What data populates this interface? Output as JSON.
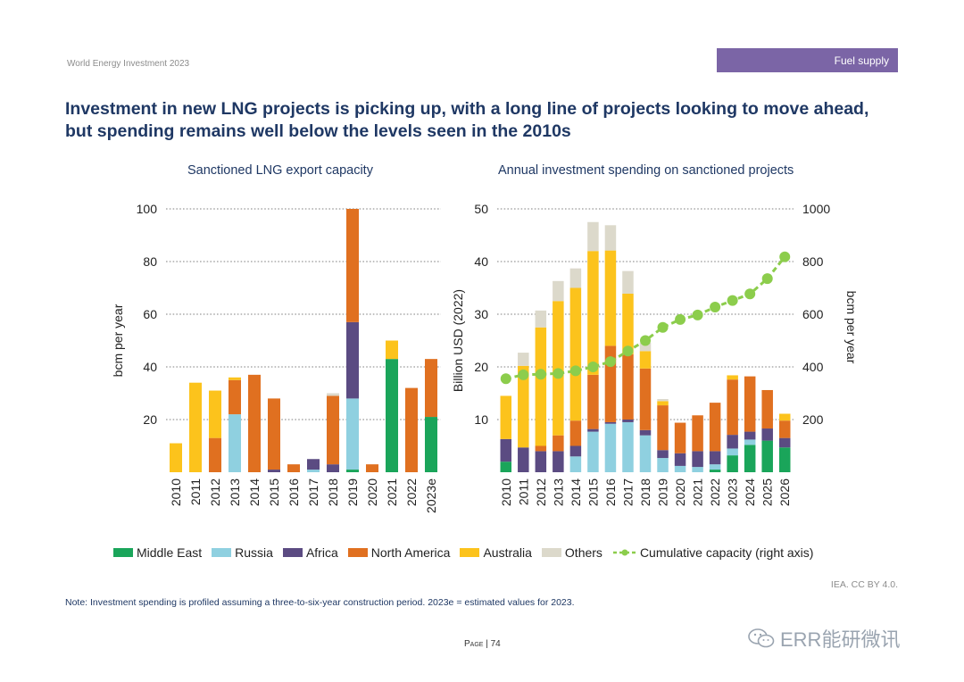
{
  "header": {
    "report": "World Energy Investment 2023",
    "section": "Fuel supply"
  },
  "headline": "Investment in new LNG projects is picking up, with a long line of projects looking to move ahead, but spending remains well below the levels seen in the 2010s",
  "colors": {
    "Middle East": "#1aa55a",
    "Russia": "#8fd0e0",
    "Africa": "#5b4b82",
    "North America": "#e07020",
    "Australia": "#fcc31c",
    "Others": "#dcd9cb",
    "Cumulative": "#8ccd4c"
  },
  "legend": {
    "items": [
      {
        "name": "Middle East",
        "color": "#1aa55a"
      },
      {
        "name": "Russia",
        "color": "#8fd0e0"
      },
      {
        "name": "Africa",
        "color": "#5b4b82"
      },
      {
        "name": "North America",
        "color": "#e07020"
      },
      {
        "name": "Australia",
        "color": "#fcc31c"
      },
      {
        "name": "Others",
        "color": "#dcd9cb"
      }
    ],
    "line_label": "Cumulative capacity (right axis)"
  },
  "chart_data": [
    {
      "type": "bar",
      "stacked": true,
      "title": "Sanctioned LNG export capacity",
      "ylabel": "bcm per year",
      "ylim": [
        0,
        100
      ],
      "yticks": [
        20,
        40,
        60,
        80,
        100
      ],
      "categories": [
        "2010",
        "2011",
        "2012",
        "2013",
        "2014",
        "2015",
        "2016",
        "2017",
        "2018",
        "2019",
        "2020",
        "2021",
        "2022",
        "2023e"
      ],
      "series": [
        {
          "name": "Middle East",
          "values": [
            0,
            0,
            0,
            0,
            0,
            0,
            0,
            0,
            0,
            1,
            0,
            43,
            0,
            21
          ]
        },
        {
          "name": "Russia",
          "values": [
            0,
            0,
            0,
            22,
            0,
            0,
            0,
            1,
            0,
            27,
            0,
            0,
            0,
            0
          ]
        },
        {
          "name": "Africa",
          "values": [
            0,
            0,
            0,
            0,
            0,
            1,
            0,
            4,
            3,
            29,
            0,
            0,
            0,
            0
          ]
        },
        {
          "name": "North America",
          "values": [
            0,
            0,
            13,
            13,
            37,
            27,
            3,
            0,
            26,
            43,
            3,
            0,
            32,
            22
          ]
        },
        {
          "name": "Australia",
          "values": [
            11,
            34,
            18,
            1,
            0,
            0,
            0,
            0,
            0,
            0,
            0,
            7,
            0,
            0
          ]
        },
        {
          "name": "Others",
          "values": [
            0,
            0,
            0,
            0,
            0,
            0,
            0,
            0,
            1,
            0,
            0,
            0,
            0,
            0
          ]
        }
      ]
    },
    {
      "type": "bar",
      "stacked": true,
      "title": "Annual investment spending on sanctioned projects",
      "ylabel": "Billion USD (2022)",
      "y2label": "bcm per year",
      "ylim": [
        0,
        50
      ],
      "y2lim": [
        0,
        1000
      ],
      "yticks": [
        10,
        20,
        30,
        40,
        50
      ],
      "y2ticks": [
        200,
        400,
        600,
        800,
        1000
      ],
      "categories": [
        "2010",
        "2011",
        "2012",
        "2013",
        "2014",
        "2015",
        "2016",
        "2017",
        "2018",
        "2019",
        "2020",
        "2021",
        "2022",
        "2023",
        "2024",
        "2025",
        "2026"
      ],
      "series": [
        {
          "name": "Middle East",
          "values": [
            2,
            0,
            0,
            0,
            0,
            0,
            0,
            0,
            0,
            0,
            0,
            0,
            0.5,
            3.2,
            5.2,
            6,
            4.7
          ]
        },
        {
          "name": "Russia",
          "values": [
            0,
            0,
            0,
            0,
            3,
            7.7,
            9.2,
            9.5,
            7,
            2.7,
            1.2,
            1,
            1,
            1.3,
            1,
            0,
            0
          ]
        },
        {
          "name": "Africa",
          "values": [
            4.3,
            4.7,
            4,
            4,
            2,
            0.5,
            0.3,
            0.5,
            1,
            1.5,
            2.4,
            3,
            2.5,
            2.6,
            1.5,
            2.3,
            1.8
          ]
        },
        {
          "name": "North America",
          "values": [
            0,
            0,
            1,
            3,
            4.8,
            10.3,
            14.5,
            12.4,
            11.7,
            8.5,
            5.8,
            6.8,
            9.2,
            10.5,
            10.5,
            7.3,
            3.3
          ]
        },
        {
          "name": "Australia",
          "values": [
            8.2,
            15.5,
            22.5,
            25.5,
            25.2,
            23.5,
            18.1,
            11.5,
            3.3,
            0.8,
            0,
            0,
            0,
            0.8,
            0,
            0,
            1.3
          ]
        },
        {
          "name": "Others",
          "values": [
            0,
            2.5,
            3.2,
            3.8,
            3.7,
            5.5,
            4.8,
            4.3,
            1.6,
            0.4,
            0,
            0,
            0,
            0,
            0,
            0,
            0
          ]
        }
      ],
      "line": {
        "name": "Cumulative capacity (right axis)",
        "axis": "right",
        "values": [
          355,
          370,
          372,
          375,
          385,
          400,
          420,
          460,
          500,
          550,
          580,
          597,
          627,
          652,
          677,
          735,
          818
        ]
      }
    }
  ],
  "source": "IEA. CC BY 4.0.",
  "note": "Note: Investment spending is profiled assuming a three-to-six-year construction period. 2023e = estimated values for 2023.",
  "page": {
    "label": "Page",
    "number": "| 74"
  },
  "watermark": "ERR能研微讯"
}
